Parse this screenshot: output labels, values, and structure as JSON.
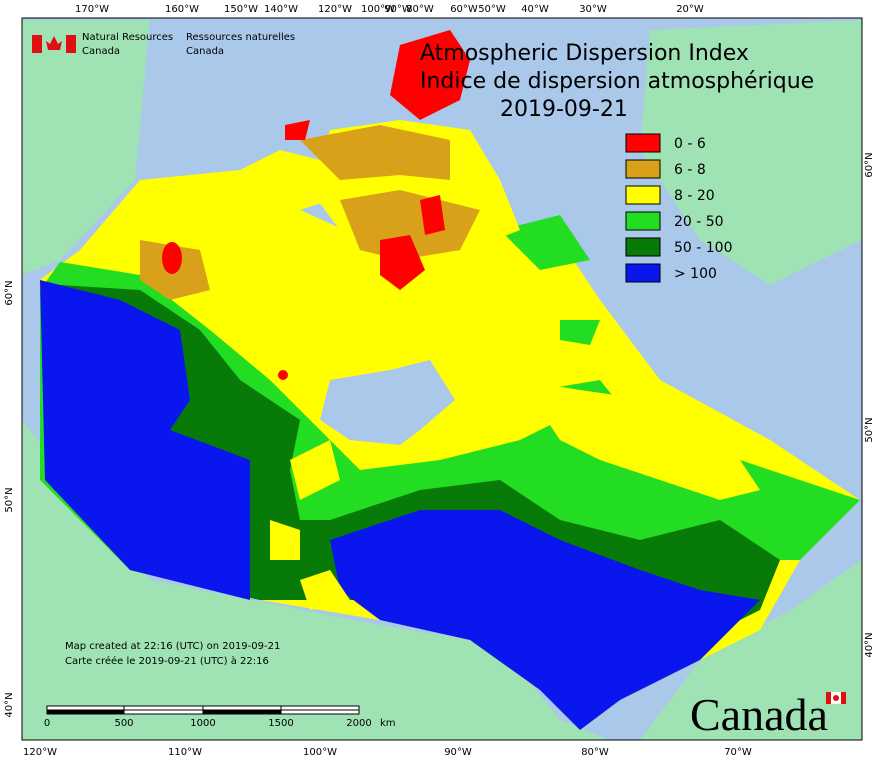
{
  "header": {
    "agency_en": "Natural Resources",
    "country_en": "Canada",
    "agency_fr": "Ressources naturelles",
    "country_fr": "Canada"
  },
  "title": {
    "line1": "Atmospheric Dispersion Index",
    "line2": "Indice de dispersion atmosphérique",
    "date": "2019-09-21"
  },
  "legend": [
    {
      "label": "0 - 6",
      "color": "#ff0000"
    },
    {
      "label": "6 - 8",
      "color": "#d9a01a"
    },
    {
      "label": "8 - 20",
      "color": "#ffff00"
    },
    {
      "label": "20 - 50",
      "color": "#22dd22"
    },
    {
      "label": "50 - 100",
      "color": "#087a08"
    },
    {
      "label": "> 100",
      "color": "#0a16ee"
    }
  ],
  "notes": {
    "created_en": "Map created at 22:16 (UTC) on 2019-09-21",
    "created_fr": "Carte créée le 2019-09-21 (UTC) à 22:16"
  },
  "scale_bar": {
    "ticks": [
      "0",
      "500",
      "1000",
      "1500",
      "2000"
    ],
    "unit": "km"
  },
  "wordmark": "Canada",
  "graticule": {
    "top": [
      "170°W",
      "160°W",
      "150°W",
      "140°W",
      "120°W",
      "100°W",
      "90°W",
      "80°W",
      "60°W",
      "50°W",
      "40°W",
      "30°W",
      "20°W"
    ],
    "bottom": [
      "120°W",
      "110°W",
      "100°W",
      "90°W",
      "80°W",
      "70°W"
    ],
    "left": [
      "60°N",
      "50°N",
      "40°N"
    ],
    "right": [
      "60°N",
      "50°N",
      "40°N"
    ]
  }
}
